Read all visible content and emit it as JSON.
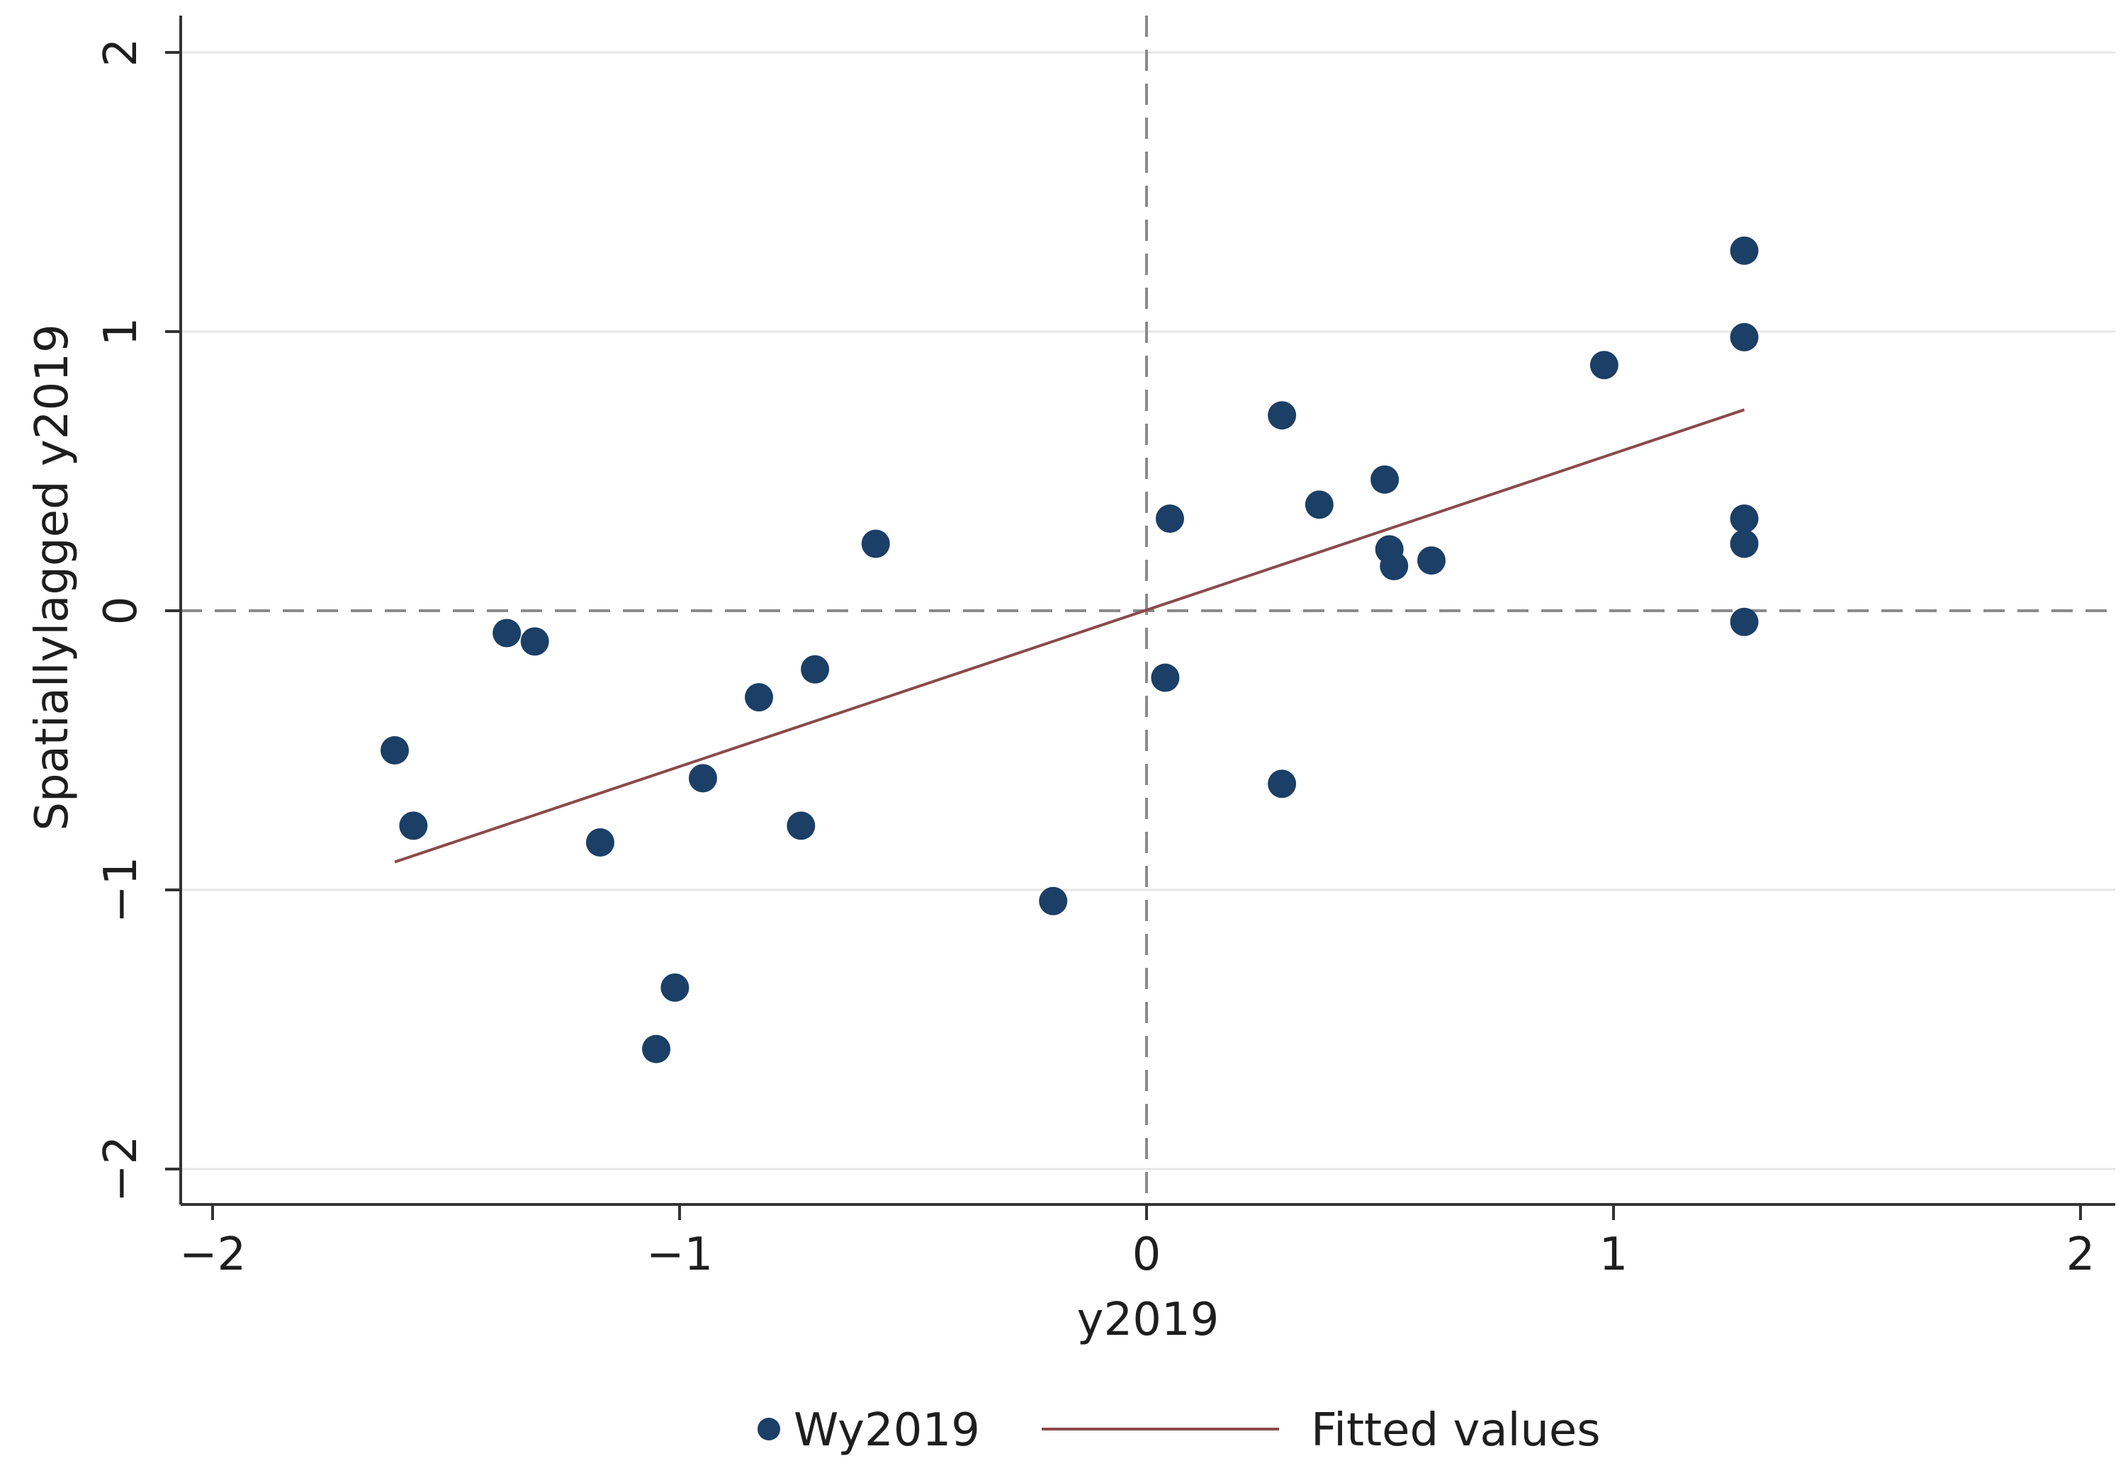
{
  "chart_data": {
    "type": "scatter",
    "title": "",
    "xlabel": "y2019",
    "ylabel": "Spatiallylagged y2019",
    "xlim": [
      -2,
      2
    ],
    "ylim": [
      -2,
      2
    ],
    "x_ticks": [
      -2,
      -1,
      0,
      1,
      2
    ],
    "y_ticks": [
      -2,
      -1,
      0,
      1,
      2
    ],
    "x_tick_labels": [
      "−2",
      "−1",
      "0",
      "1",
      "2"
    ],
    "y_tick_labels": [
      "−2",
      "−1",
      "0",
      "1",
      "2"
    ],
    "grid": true,
    "reference_lines": {
      "x": 0,
      "y": 0,
      "style": "dashed"
    },
    "colors": {
      "points": "#1b3f66",
      "fit": "#8b4a4a",
      "grid": "#e6e6e6",
      "reference": "#8a8a8a",
      "axis": "#333333"
    },
    "series": [
      {
        "name": "Wy2019",
        "type": "scatter",
        "points": [
          {
            "x": -1.61,
            "y": -0.5
          },
          {
            "x": -1.57,
            "y": -0.77
          },
          {
            "x": -1.37,
            "y": -0.08
          },
          {
            "x": -1.31,
            "y": -0.11
          },
          {
            "x": -1.17,
            "y": -0.83
          },
          {
            "x": -1.05,
            "y": -1.57
          },
          {
            "x": -1.01,
            "y": -1.35
          },
          {
            "x": -0.95,
            "y": -0.6
          },
          {
            "x": -0.83,
            "y": -0.31
          },
          {
            "x": -0.74,
            "y": -0.77
          },
          {
            "x": -0.71,
            "y": -0.21
          },
          {
            "x": -0.58,
            "y": 0.24
          },
          {
            "x": -0.2,
            "y": -1.04
          },
          {
            "x": 0.04,
            "y": -0.24
          },
          {
            "x": 0.05,
            "y": 0.33
          },
          {
            "x": 0.29,
            "y": 0.7
          },
          {
            "x": 0.29,
            "y": -0.62
          },
          {
            "x": 0.37,
            "y": 0.38
          },
          {
            "x": 0.51,
            "y": 0.47
          },
          {
            "x": 0.52,
            "y": 0.22
          },
          {
            "x": 0.53,
            "y": 0.16
          },
          {
            "x": 0.61,
            "y": 0.18
          },
          {
            "x": 0.98,
            "y": 0.88
          },
          {
            "x": 1.28,
            "y": 1.29
          },
          {
            "x": 1.28,
            "y": 0.98
          },
          {
            "x": 1.28,
            "y": 0.33
          },
          {
            "x": 1.28,
            "y": 0.24
          },
          {
            "x": 1.28,
            "y": -0.04
          }
        ]
      },
      {
        "name": "Fitted values",
        "type": "line",
        "points": [
          {
            "x": -1.61,
            "y": -0.9
          },
          {
            "x": 1.28,
            "y": 0.72
          }
        ]
      }
    ],
    "legend": {
      "position": "bottom",
      "entries": [
        "Wy2019",
        "Fitted values"
      ]
    }
  }
}
